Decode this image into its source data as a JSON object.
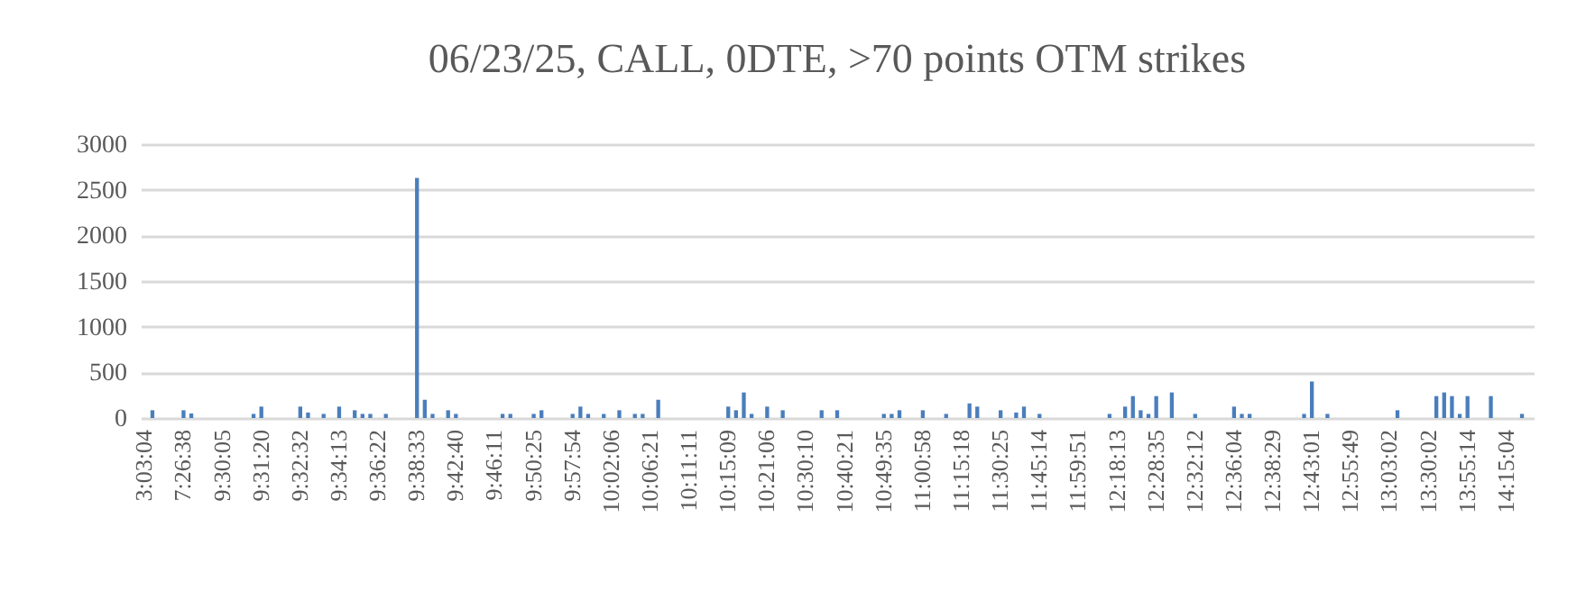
{
  "chart_data": {
    "type": "bar",
    "title": "06/23/25, CALL, 0DTE, >70 points OTM strikes",
    "categories": [
      "3:03:04",
      null,
      null,
      null,
      null,
      "7:26:38",
      null,
      null,
      null,
      null,
      "9:30:05",
      null,
      null,
      null,
      null,
      "9:31:20",
      null,
      null,
      null,
      null,
      "9:32:32",
      null,
      null,
      null,
      null,
      "9:34:13",
      null,
      null,
      null,
      null,
      "9:36:22",
      null,
      null,
      null,
      null,
      "9:38:33",
      null,
      null,
      null,
      null,
      "9:42:40",
      null,
      null,
      null,
      null,
      "9:46:11",
      null,
      null,
      null,
      null,
      "9:50:25",
      null,
      null,
      null,
      null,
      "9:57:54",
      null,
      null,
      null,
      null,
      "10:02:06",
      null,
      null,
      null,
      null,
      "10:06:21",
      null,
      null,
      null,
      null,
      "10:11:11",
      null,
      null,
      null,
      null,
      "10:15:09",
      null,
      null,
      null,
      null,
      "10:21:06",
      null,
      null,
      null,
      null,
      "10:30:10",
      null,
      null,
      null,
      null,
      "10:40:21",
      null,
      null,
      null,
      null,
      "10:49:35",
      null,
      null,
      null,
      null,
      "11:00:58",
      null,
      null,
      null,
      null,
      "11:15:18",
      null,
      null,
      null,
      null,
      "11:30:25",
      null,
      null,
      null,
      null,
      "11:45:14",
      null,
      null,
      null,
      null,
      "11:59:51",
      null,
      null,
      null,
      null,
      "12:18:13",
      null,
      null,
      null,
      null,
      "12:28:35",
      null,
      null,
      null,
      null,
      "12:32:12",
      null,
      null,
      null,
      null,
      "12:36:04",
      null,
      null,
      null,
      null,
      "12:38:29",
      null,
      null,
      null,
      null,
      "12:43:01",
      null,
      null,
      null,
      null,
      "12:55:49",
      null,
      null,
      null,
      null,
      "13:03:02",
      null,
      null,
      null,
      null,
      "13:30:02",
      null,
      null,
      null,
      null,
      "13:55:14",
      null,
      null,
      null,
      null,
      "14:15:04",
      null,
      null,
      null
    ],
    "values": [
      0,
      85,
      0,
      0,
      0,
      85,
      50,
      0,
      0,
      0,
      0,
      0,
      0,
      0,
      45,
      125,
      0,
      0,
      0,
      0,
      125,
      60,
      0,
      45,
      0,
      125,
      0,
      85,
      45,
      45,
      0,
      45,
      0,
      0,
      0,
      2630,
      200,
      45,
      0,
      85,
      45,
      0,
      0,
      0,
      0,
      0,
      45,
      45,
      0,
      0,
      45,
      85,
      0,
      0,
      0,
      45,
      125,
      45,
      0,
      45,
      0,
      85,
      0,
      45,
      45,
      0,
      200,
      0,
      0,
      0,
      0,
      0,
      0,
      0,
      0,
      125,
      85,
      280,
      45,
      0,
      125,
      0,
      85,
      0,
      0,
      0,
      0,
      85,
      0,
      85,
      0,
      0,
      0,
      0,
      0,
      45,
      45,
      85,
      0,
      0,
      85,
      0,
      0,
      45,
      0,
      0,
      160,
      125,
      0,
      0,
      85,
      0,
      60,
      125,
      0,
      45,
      0,
      0,
      0,
      0,
      0,
      0,
      0,
      0,
      45,
      0,
      125,
      240,
      85,
      45,
      240,
      0,
      280,
      0,
      0,
      45,
      0,
      0,
      0,
      0,
      125,
      45,
      45,
      0,
      0,
      0,
      0,
      0,
      0,
      45,
      400,
      0,
      45,
      0,
      0,
      0,
      0,
      0,
      0,
      0,
      0,
      85,
      0,
      0,
      0,
      0,
      240,
      280,
      240,
      45,
      240,
      0,
      0,
      240,
      0,
      0,
      0,
      45,
      0
    ],
    "color": "#4a7ebb",
    "ylim": [
      0,
      3000
    ],
    "yticks": [
      0,
      500,
      1000,
      1500,
      2000,
      2500,
      3000
    ],
    "grid": "y"
  }
}
